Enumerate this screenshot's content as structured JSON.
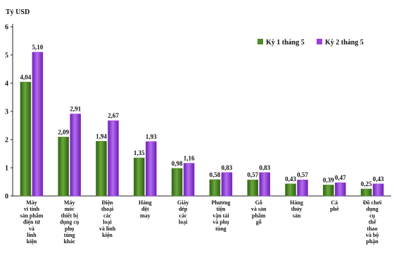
{
  "chart_data": {
    "type": "bar",
    "unit_label": "Tỷ USD",
    "ylim": [
      0,
      6
    ],
    "yticks": [
      "0",
      "1",
      "2",
      "3",
      "4",
      "5",
      "6"
    ],
    "grid": false,
    "legend_position": "top-right",
    "categories": [
      [
        "Máy",
        "vi tính",
        "sản phẩm",
        "điện tử",
        "và",
        "linh",
        "kiện"
      ],
      [
        "Máy",
        "móc",
        "thiết bị",
        "dụng cụ",
        "phụ",
        "tùng",
        "khác"
      ],
      [
        "Điện",
        "thoại",
        "các",
        "loại",
        "và linh",
        "kiện"
      ],
      [
        "Hàng",
        "dệt",
        "may"
      ],
      [
        "Giày",
        "dép",
        "các",
        "loại"
      ],
      [
        "Phương",
        "tiện",
        "vận tải",
        "và phụ",
        "tùng"
      ],
      [
        "Gỗ",
        "và sản",
        "phẩm",
        "gỗ"
      ],
      [
        "Hàng",
        "thủy",
        "sản"
      ],
      [
        "Cà",
        "phê"
      ],
      [
        "Đồ chơi",
        "dụng",
        "cụ",
        "thể",
        "thao",
        "và bộ",
        "phận"
      ]
    ],
    "series": [
      {
        "name": "Kỳ 1 tháng 5",
        "color": "#4e8a2a",
        "values": [
          4.04,
          2.09,
          1.94,
          1.35,
          0.98,
          0.58,
          0.57,
          0.43,
          0.39,
          0.25
        ],
        "labels": [
          "4,04",
          "2,09",
          "1,94",
          "1,35",
          "0,98",
          "0,58",
          "0,57",
          "0,43",
          "0,39",
          "0,25"
        ]
      },
      {
        "name": "Kỳ 2 tháng 5",
        "color": "#9b3ee0",
        "values": [
          5.1,
          2.91,
          2.67,
          1.93,
          1.16,
          0.83,
          0.83,
          0.57,
          0.47,
          0.43
        ],
        "labels": [
          "5,10",
          "2,91",
          "2,67",
          "1,93",
          "1,16",
          "0,83",
          "0,83",
          "0,57",
          "0,47",
          "0,43"
        ]
      }
    ]
  }
}
